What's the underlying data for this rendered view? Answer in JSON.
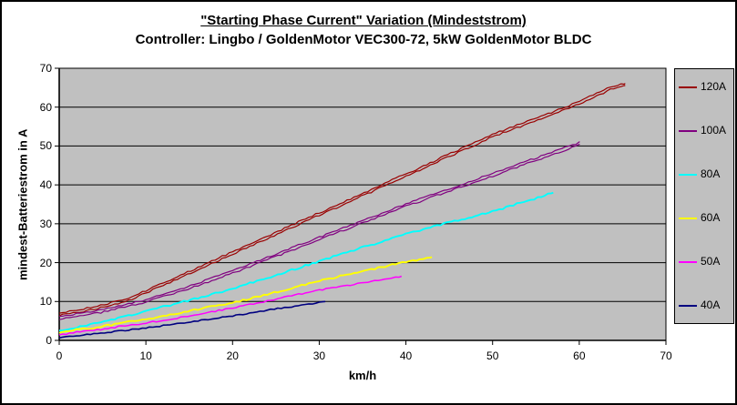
{
  "chart_data": {
    "type": "line",
    "title": "\"Starting Phase Current\" Variation (Mindeststrom)",
    "subtitle": "Controller: Lingbo / GoldenMotor VEC300-72, 5kW GoldenMotor BLDC",
    "xlabel": "km/h",
    "ylabel": "mindest-Batteriestrom in A",
    "xlim": [
      0,
      70
    ],
    "ylim": [
      0,
      70
    ],
    "x_ticks": [
      0,
      10,
      20,
      30,
      40,
      50,
      60,
      70
    ],
    "y_ticks": [
      0,
      10,
      20,
      30,
      40,
      50,
      60,
      70
    ],
    "grid": "horizontal",
    "legend_position": "right",
    "plot_bg_color": "#c0c0c0",
    "legend_bg_color": "#c0c0c0",
    "axis_color": "#000000",
    "series": [
      {
        "name": "120A",
        "color": "#990000",
        "double": true,
        "width": 1.2,
        "noise": 0.45,
        "points": [
          [
            0,
            6.8
          ],
          [
            2,
            7.4
          ],
          [
            5,
            8.8
          ],
          [
            8,
            10.6
          ],
          [
            10,
            12.5
          ],
          [
            15,
            17.4
          ],
          [
            20,
            22.5
          ],
          [
            25,
            27.5
          ],
          [
            30,
            32.5
          ],
          [
            35,
            37.5
          ],
          [
            40,
            42.5
          ],
          [
            45,
            47.6
          ],
          [
            50,
            52.7
          ],
          [
            55,
            56.8
          ],
          [
            59,
            60.2
          ],
          [
            62,
            63.2
          ],
          [
            64,
            65.2
          ],
          [
            65.3,
            65.8
          ]
        ]
      },
      {
        "name": "100A",
        "color": "#800080",
        "double": true,
        "width": 1.2,
        "noise": 0.45,
        "points": [
          [
            0,
            5.7
          ],
          [
            5,
            7.6
          ],
          [
            10,
            10.2
          ],
          [
            15,
            13.6
          ],
          [
            20,
            17.6
          ],
          [
            25,
            21.9
          ],
          [
            30,
            26.2
          ],
          [
            35,
            30.5
          ],
          [
            40,
            34.8
          ],
          [
            45,
            38.7
          ],
          [
            50,
            42.6
          ],
          [
            55,
            46.6
          ],
          [
            60,
            50.6
          ]
        ]
      },
      {
        "name": "80A",
        "color": "#00ffff",
        "double": false,
        "width": 1.9,
        "noise": 0.5,
        "points": [
          [
            0,
            2.4
          ],
          [
            5,
            4.7
          ],
          [
            10,
            7.5
          ],
          [
            15,
            10.3
          ],
          [
            20,
            13.3
          ],
          [
            25,
            16.8
          ],
          [
            30,
            20.4
          ],
          [
            35,
            23.9
          ],
          [
            40,
            27.4
          ],
          [
            45,
            30.3
          ],
          [
            50,
            33.2
          ],
          [
            54,
            35.9
          ],
          [
            57,
            38
          ]
        ]
      },
      {
        "name": "60A",
        "color": "#ffff00",
        "double": false,
        "width": 1.9,
        "noise": 0.5,
        "points": [
          [
            0,
            2.1
          ],
          [
            5,
            3.6
          ],
          [
            10,
            5.5
          ],
          [
            15,
            7.5
          ],
          [
            20,
            9.7
          ],
          [
            25,
            12.4
          ],
          [
            30,
            15.3
          ],
          [
            35,
            17.8
          ],
          [
            40,
            20.2
          ],
          [
            43,
            21.4
          ]
        ]
      },
      {
        "name": "50A",
        "color": "#ff00ff",
        "double": false,
        "width": 1.5,
        "noise": 0.4,
        "points": [
          [
            0,
            1.5
          ],
          [
            5,
            2.9
          ],
          [
            10,
            4.5
          ],
          [
            15,
            6.3
          ],
          [
            20,
            8.3
          ],
          [
            25,
            10.6
          ],
          [
            30,
            12.9
          ],
          [
            35,
            14.8
          ],
          [
            39.5,
            16.5
          ]
        ]
      },
      {
        "name": "40A",
        "color": "#000080",
        "double": false,
        "width": 1.6,
        "noise": 0.3,
        "points": [
          [
            0,
            0.7
          ],
          [
            5,
            1.9
          ],
          [
            10,
            3.2
          ],
          [
            15,
            4.7
          ],
          [
            20,
            6.3
          ],
          [
            25,
            8.1
          ],
          [
            30,
            9.7
          ],
          [
            30.7,
            10
          ]
        ]
      }
    ]
  }
}
